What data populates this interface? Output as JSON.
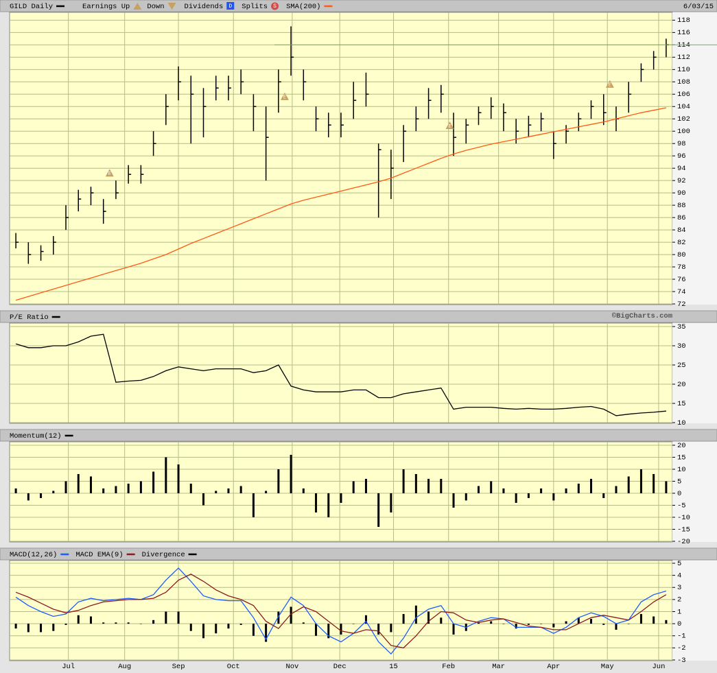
{
  "chart_data": [
    {
      "type": "ohlc",
      "date": "6/03/15",
      "legend": {
        "earnings_up": "Earnings Up",
        "down": "Down",
        "dividends": "Dividends",
        "dividends_icon": "D",
        "splits": "Splits",
        "splits_icon": "S"
      },
      "earnings_label": "E",
      "earnings": {
        "x": [
          7.5,
          21.5,
          34.7,
          47.5
        ],
        "y": [
          93.2,
          105.6,
          100.9,
          107.6
        ]
      },
      "hline": 114,
      "hline_color": "#44cc44",
      "xlim": [
        -0.5,
        52.5
      ],
      "ylim": [
        72,
        118.6
      ],
      "yticks": [
        72,
        74,
        76,
        78,
        80,
        82,
        84,
        86,
        88,
        90,
        92,
        94,
        96,
        98,
        100,
        102,
        104,
        106,
        108,
        110,
        112,
        114,
        116,
        118
      ],
      "x": [
        0,
        1,
        2,
        3,
        4,
        5,
        6,
        7,
        8,
        9,
        10,
        11,
        12,
        13,
        14,
        15,
        16,
        17,
        18,
        19,
        20,
        21,
        22,
        23,
        24,
        25,
        26,
        27,
        28,
        29,
        30,
        31,
        32,
        33,
        34,
        35,
        36,
        37,
        38,
        39,
        40,
        41,
        42,
        43,
        44,
        45,
        46,
        47,
        48,
        49,
        50,
        51,
        52
      ],
      "series": [
        {
          "name": "GILD Daily",
          "color": "#000000",
          "high": [
            83.5,
            82,
            81.5,
            83,
            88,
            90.5,
            91,
            89,
            92,
            94.5,
            94.5,
            100,
            106,
            110.5,
            109,
            107,
            109,
            109,
            110,
            106,
            104,
            110,
            117,
            110,
            104,
            103,
            103,
            108,
            109.5,
            98,
            97,
            101,
            104,
            107,
            107.5,
            103,
            102,
            104,
            105.5,
            104.5,
            102,
            102.5,
            103,
            100,
            101,
            103,
            105,
            106,
            104,
            108,
            111,
            113,
            115
          ],
          "low": [
            81,
            78.5,
            79,
            80,
            84,
            87,
            88,
            85,
            89,
            91.5,
            91.5,
            96,
            101,
            105,
            98,
            99,
            105,
            105,
            106,
            100,
            92,
            103,
            109,
            105,
            100,
            99,
            99,
            102,
            104,
            86,
            89,
            95,
            100,
            102,
            103,
            96,
            98,
            101,
            102,
            100,
            98,
            99,
            100,
            95.5,
            98,
            100,
            102,
            101,
            100,
            103,
            108,
            110,
            112
          ],
          "close": [
            82,
            80,
            80.5,
            82,
            86,
            89,
            90,
            87,
            90,
            93,
            93,
            98,
            104,
            108,
            106,
            104,
            107,
            107,
            108,
            104,
            99,
            108,
            112,
            108,
            102,
            101,
            101,
            105,
            106,
            97,
            94,
            100,
            102,
            105,
            106,
            99,
            101,
            103,
            104,
            103,
            100,
            101,
            102,
            98,
            100,
            102,
            104,
            103,
            102,
            106,
            110,
            112,
            114
          ]
        },
        {
          "name": "SMA(200)",
          "color": "#ff5a14",
          "values": [
            72.6,
            73.2,
            73.8,
            74.4,
            75.0,
            75.6,
            76.2,
            76.8,
            77.4,
            78.0,
            78.6,
            79.3,
            80.0,
            80.9,
            81.8,
            82.6,
            83.4,
            84.2,
            85.0,
            85.8,
            86.6,
            87.4,
            88.2,
            88.8,
            89.3,
            89.8,
            90.3,
            90.8,
            91.3,
            91.8,
            92.4,
            93.2,
            94.0,
            94.8,
            95.6,
            96.3,
            96.9,
            97.4,
            97.9,
            98.3,
            98.7,
            99.1,
            99.5,
            99.9,
            100.3,
            100.7,
            101.1,
            101.5,
            102.0,
            102.5,
            103.0,
            103.4,
            103.8
          ]
        }
      ]
    },
    {
      "type": "line",
      "source": "©BigCharts.com",
      "xlim": [
        -0.5,
        52.5
      ],
      "ylim": [
        10,
        35
      ],
      "yticks": [
        10,
        15,
        20,
        25,
        30,
        35
      ],
      "x": [
        0,
        1,
        2,
        3,
        4,
        5,
        6,
        7,
        8,
        9,
        10,
        11,
        12,
        13,
        14,
        15,
        16,
        17,
        18,
        19,
        20,
        21,
        22,
        23,
        24,
        25,
        26,
        27,
        28,
        29,
        30,
        31,
        32,
        33,
        34,
        35,
        36,
        37,
        38,
        39,
        40,
        41,
        42,
        43,
        44,
        45,
        46,
        47,
        48,
        49,
        50,
        51,
        52
      ],
      "series": [
        {
          "name": "P/E Ratio",
          "color": "#000000",
          "style": "line",
          "values": [
            30.5,
            29.5,
            29.5,
            30,
            30,
            31,
            32.5,
            33,
            20.5,
            20.8,
            21,
            22,
            23.5,
            24.5,
            24,
            23.5,
            24,
            24,
            24,
            23,
            23.5,
            25,
            19.5,
            18.5,
            18,
            18,
            18,
            18.5,
            18.5,
            16.5,
            16.5,
            17.5,
            18,
            18.5,
            19,
            13.5,
            14,
            14,
            14,
            13.7,
            13.5,
            13.7,
            13.5,
            13.5,
            13.7,
            14,
            14.2,
            13.5,
            11.8,
            12.2,
            12.5,
            12.7,
            13
          ]
        }
      ]
    },
    {
      "type": "line",
      "xlim": [
        -0.5,
        52.5
      ],
      "ylim": [
        -20,
        20
      ],
      "yticks": [
        -20,
        -15,
        -10,
        -5,
        0,
        5,
        10,
        15,
        20
      ],
      "x": [
        0,
        1,
        2,
        3,
        4,
        5,
        6,
        7,
        8,
        9,
        10,
        11,
        12,
        13,
        14,
        15,
        16,
        17,
        18,
        19,
        20,
        21,
        22,
        23,
        24,
        25,
        26,
        27,
        28,
        29,
        30,
        31,
        32,
        33,
        34,
        35,
        36,
        37,
        38,
        39,
        40,
        41,
        42,
        43,
        44,
        45,
        46,
        47,
        48,
        49,
        50,
        51,
        52
      ],
      "series": [
        {
          "name": "Momentum(12)",
          "color": "#000000",
          "style": "bar",
          "values": [
            2,
            -3,
            -2,
            1,
            5,
            8,
            7,
            2,
            3,
            4,
            5,
            9,
            15,
            12,
            4,
            -5,
            1,
            2,
            3,
            -10,
            1,
            10,
            16,
            2,
            -8,
            -10,
            -4,
            5,
            6,
            -14,
            -8,
            10,
            8,
            6,
            6,
            -6,
            -3,
            3,
            5,
            2,
            -4,
            -2,
            2,
            -3,
            2,
            4,
            6,
            -2,
            3,
            7,
            10,
            8,
            5
          ]
        }
      ]
    },
    {
      "type": "line",
      "xlim": [
        -0.5,
        52.5
      ],
      "ylim": [
        -3,
        5
      ],
      "yticks": [
        -3,
        -2,
        -1,
        0,
        1,
        2,
        3,
        4,
        5
      ],
      "xticks": [
        {
          "value": 4.2,
          "label": "Jul"
        },
        {
          "value": 8.7,
          "label": "Aug"
        },
        {
          "value": 13.0,
          "label": "Sep"
        },
        {
          "value": 17.4,
          "label": "Oct"
        },
        {
          "value": 22.1,
          "label": "Nov"
        },
        {
          "value": 25.9,
          "label": "Dec"
        },
        {
          "value": 30.2,
          "label": "15"
        },
        {
          "value": 34.6,
          "label": "Feb"
        },
        {
          "value": 38.6,
          "label": "Mar"
        },
        {
          "value": 43.0,
          "label": "Apr"
        },
        {
          "value": 47.3,
          "label": "May"
        },
        {
          "value": 51.4,
          "label": "Jun"
        }
      ],
      "x": [
        0,
        1,
        2,
        3,
        4,
        5,
        6,
        7,
        8,
        9,
        10,
        11,
        12,
        13,
        14,
        15,
        16,
        17,
        18,
        19,
        20,
        21,
        22,
        23,
        24,
        25,
        26,
        27,
        28,
        29,
        30,
        31,
        32,
        33,
        34,
        35,
        36,
        37,
        38,
        39,
        40,
        41,
        42,
        43,
        44,
        45,
        46,
        47,
        48,
        49,
        50,
        51,
        52
      ],
      "series": [
        {
          "name": "MACD(12,26)",
          "color": "#1a5cff",
          "style": "line",
          "values": [
            2.2,
            1.5,
            1.0,
            0.6,
            0.8,
            1.8,
            2.1,
            1.9,
            2.0,
            2.1,
            2.0,
            2.4,
            3.6,
            4.6,
            3.5,
            2.3,
            2.0,
            1.9,
            1.9,
            0.5,
            -1.3,
            0.6,
            2.2,
            1.5,
            0.0,
            -1.0,
            -1.5,
            -0.8,
            0.2,
            -1.5,
            -2.5,
            -1.2,
            0.5,
            1.2,
            1.5,
            0.0,
            -0.3,
            0.2,
            0.5,
            0.4,
            -0.3,
            -0.3,
            -0.3,
            -0.8,
            -0.3,
            0.5,
            0.9,
            0.6,
            0.0,
            0.3,
            1.8,
            2.4,
            2.7
          ]
        },
        {
          "name": "MACD EMA(9)",
          "color": "#8b1a1a",
          "style": "line",
          "values": [
            2.6,
            2.2,
            1.7,
            1.2,
            0.9,
            1.1,
            1.5,
            1.8,
            1.9,
            2.0,
            2.0,
            2.1,
            2.6,
            3.6,
            4.1,
            3.5,
            2.8,
            2.3,
            2.0,
            1.5,
            0.2,
            -0.4,
            0.8,
            1.4,
            1.0,
            0.2,
            -0.6,
            -0.8,
            -0.5,
            -0.6,
            -1.8,
            -2.0,
            -1.0,
            0.2,
            1.0,
            0.9,
            0.3,
            0.1,
            0.3,
            0.4,
            0.1,
            -0.2,
            -0.3,
            -0.5,
            -0.5,
            0.0,
            0.5,
            0.7,
            0.5,
            0.3,
            1.0,
            1.8,
            2.4
          ]
        },
        {
          "name": "Divergence",
          "color": "#000000",
          "style": "bar",
          "values": [
            -0.4,
            -0.7,
            -0.7,
            -0.6,
            -0.1,
            0.7,
            0.6,
            0.1,
            0.1,
            0.1,
            0,
            0.3,
            1.0,
            1.0,
            -0.6,
            -1.2,
            -0.8,
            -0.4,
            -0.1,
            -1.0,
            -1.5,
            1.0,
            1.4,
            0.1,
            -1.0,
            -1.2,
            -0.9,
            0.0,
            0.7,
            -0.9,
            -0.7,
            0.8,
            1.5,
            1.0,
            0.5,
            -0.9,
            -0.6,
            0.1,
            0.2,
            0.0,
            -0.4,
            -0.1,
            0.0,
            -0.3,
            0.2,
            0.5,
            0.4,
            -0.1,
            -0.5,
            0.0,
            0.8,
            0.6,
            0.3
          ]
        }
      ]
    }
  ]
}
